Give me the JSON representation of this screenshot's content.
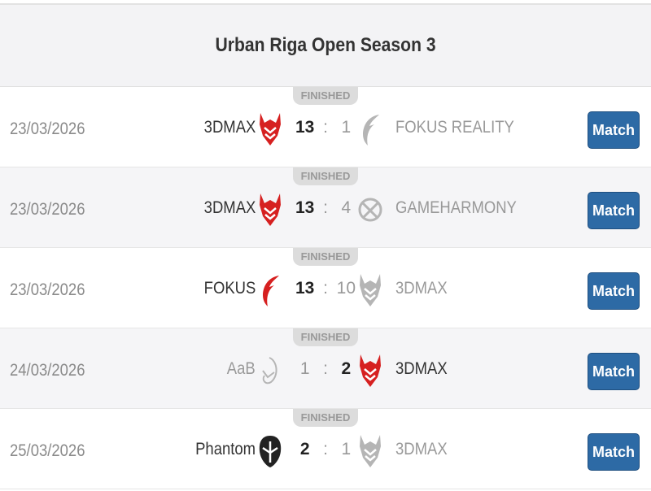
{
  "title": "Urban Riga Open Season 3",
  "colors": {
    "accent": "#2d6aa5",
    "winner_logo": "#d62020",
    "gray": "#999999"
  },
  "matches": [
    {
      "status": "FINISHED",
      "date": "23/03/2026",
      "home": "3DMAX",
      "home_logo": "3dmax-logo",
      "home_score": "13",
      "sep": ":",
      "away_score": "1",
      "away": "FOKUS REALITY",
      "away_logo": "fokus-logo",
      "winner": "home",
      "button": "Match"
    },
    {
      "status": "FINISHED",
      "date": "23/03/2026",
      "home": "3DMAX",
      "home_logo": "3dmax-logo",
      "home_score": "13",
      "sep": ":",
      "away_score": "4",
      "away": "GAMEHARMONY",
      "away_logo": "gameharmony-logo",
      "winner": "home",
      "button": "Match"
    },
    {
      "status": "FINISHED",
      "date": "23/03/2026",
      "home": "FOKUS",
      "home_logo": "fokus-logo",
      "home_score": "13",
      "sep": ":",
      "away_score": "10",
      "away": "3DMAX",
      "away_logo": "3dmax-logo",
      "winner": "home",
      "button": "Match"
    },
    {
      "status": "FINISHED",
      "date": "24/03/2026",
      "home": "AaB",
      "home_logo": "aab-logo",
      "home_score": "1",
      "sep": ":",
      "away_score": "2",
      "away": "3DMAX",
      "away_logo": "3dmax-logo",
      "winner": "away",
      "button": "Match"
    },
    {
      "status": "FINISHED",
      "date": "25/03/2026",
      "home": "Phantom",
      "home_logo": "phantom-logo",
      "home_score": "2",
      "sep": ":",
      "away_score": "1",
      "away": "3DMAX",
      "away_logo": "3dmax-logo",
      "winner": "home",
      "button": "Match"
    }
  ]
}
